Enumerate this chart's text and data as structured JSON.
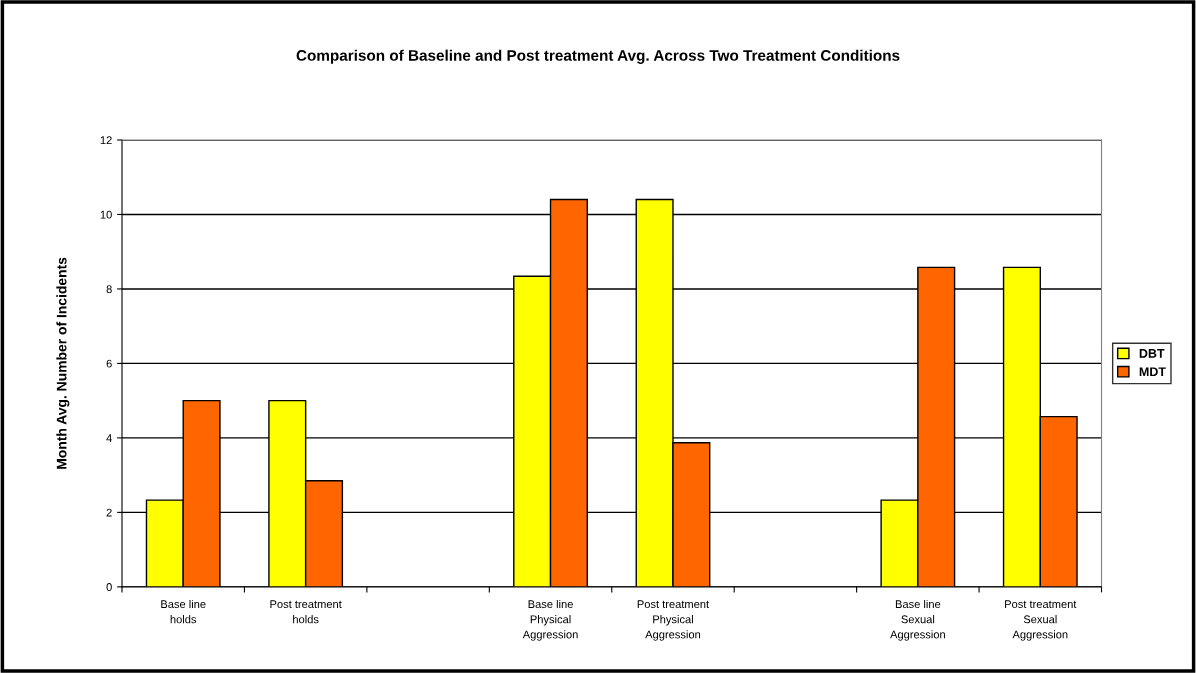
{
  "chart_data": {
    "type": "bar",
    "title": "Comparison of Baseline and Post treatment Avg. Across Two Treatment Conditions",
    "ylabel": "Month Avg. Number of Incidents",
    "categories": [
      "Base line\nholds",
      "Post treatment\nholds",
      null,
      "Base line\nPhysical\nAggression",
      "Post treatment\nPhysical\nAggression",
      null,
      "Base line\nSexual\nAggression",
      "Post treatment\nSexual\nAggression"
    ],
    "series": [
      {
        "name": "DBT",
        "color": "#ffff00",
        "values": [
          2.33,
          5.0,
          null,
          8.34,
          10.4,
          null,
          2.33,
          8.58
        ]
      },
      {
        "name": "MDT",
        "color": "#ff6600",
        "values": [
          5.0,
          2.85,
          null,
          10.4,
          3.87,
          null,
          8.58,
          4.57
        ]
      }
    ],
    "ylim": [
      0,
      12
    ],
    "yticks": [
      0,
      2,
      4,
      6,
      8,
      10,
      12
    ],
    "grid": "y",
    "legend": "right"
  }
}
